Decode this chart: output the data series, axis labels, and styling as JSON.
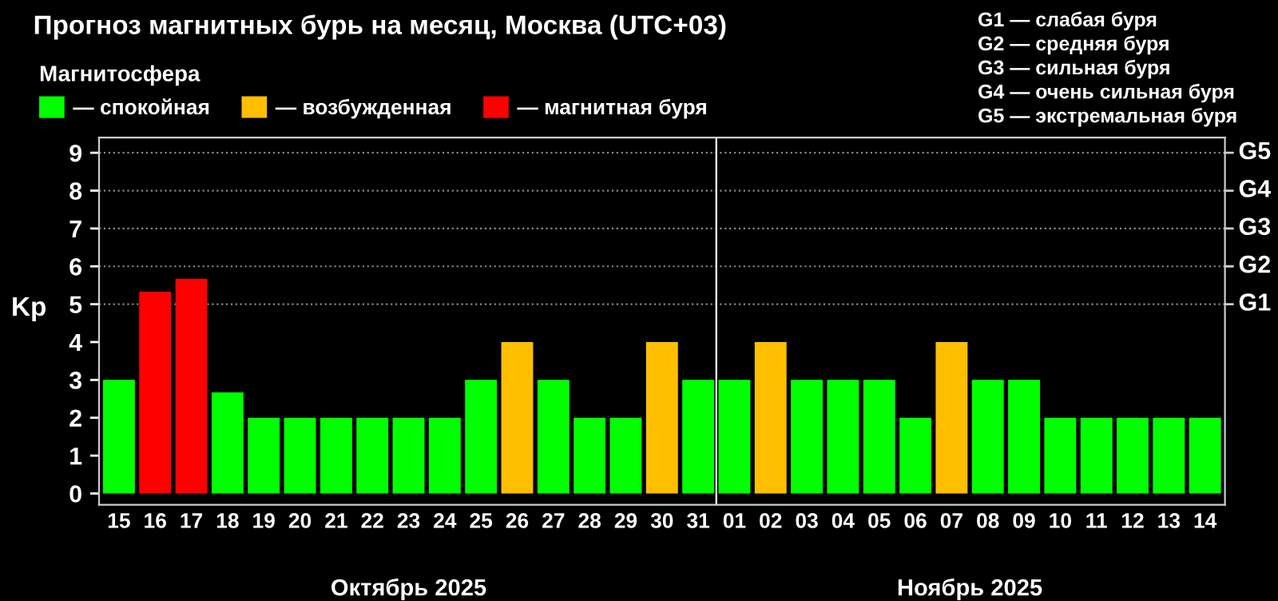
{
  "chart_data": {
    "type": "bar",
    "title": "Прогноз магнитных бурь на месяц, Москва (UTC+03)",
    "ylabel": "Kp",
    "legend_title": "Магнитосфера",
    "categories": [
      "15",
      "16",
      "17",
      "18",
      "19",
      "20",
      "21",
      "22",
      "23",
      "24",
      "25",
      "26",
      "27",
      "28",
      "29",
      "30",
      "31",
      "01",
      "02",
      "03",
      "04",
      "05",
      "06",
      "07",
      "08",
      "09",
      "10",
      "11",
      "12",
      "13",
      "14"
    ],
    "series": [
      {
        "name": "— спокойная",
        "color": "#00ff00",
        "values": [
          3,
          null,
          null,
          2.67,
          2,
          2,
          2,
          2,
          2,
          2,
          3,
          null,
          3,
          2,
          2,
          null,
          3,
          3,
          null,
          3,
          3,
          3,
          2,
          null,
          3,
          3,
          2,
          2,
          2,
          2,
          2
        ]
      },
      {
        "name": "— возбужденная",
        "color": "#ffbf00",
        "values": [
          null,
          null,
          null,
          null,
          null,
          null,
          null,
          null,
          null,
          null,
          null,
          4,
          null,
          null,
          null,
          4,
          null,
          null,
          4,
          null,
          null,
          null,
          null,
          4,
          null,
          null,
          null,
          null,
          null,
          null,
          null
        ]
      },
      {
        "name": "— магнитная буря",
        "color": "#ff0000",
        "values": [
          null,
          5.33,
          5.67,
          null,
          null,
          null,
          null,
          null,
          null,
          null,
          null,
          null,
          null,
          null,
          null,
          null,
          null,
          null,
          null,
          null,
          null,
          null,
          null,
          null,
          null,
          null,
          null,
          null,
          null,
          null,
          null
        ]
      }
    ],
    "ylim": [
      -0.3,
      9.4
    ],
    "yticks": [
      0,
      1,
      2,
      3,
      4,
      5,
      6,
      7,
      8,
      9
    ],
    "legend": "top left",
    "ref_lines": [
      {
        "axis": "x",
        "value": "01",
        "color": "#ffffff"
      },
      {
        "axis": "y",
        "value": 5,
        "label": "G1",
        "color": "#888888",
        "line_style": "dotted"
      },
      {
        "axis": "y",
        "value": 6,
        "label": "G2",
        "color": "#888888",
        "line_style": "dotted"
      },
      {
        "axis": "y",
        "value": 7,
        "label": "G3",
        "color": "#888888",
        "line_style": "dotted"
      },
      {
        "axis": "y",
        "value": 8,
        "label": "G4",
        "color": "#888888",
        "line_style": "dotted"
      },
      {
        "axis": "y",
        "value": 9,
        "label": "G5",
        "color": "#888888",
        "line_style": "dotted"
      }
    ],
    "annotations": [
      "Октябрь 2025",
      "Ноябрь 2025",
      "G1 — слабая буря",
      "G2 — средняя буря",
      "G3 — сильная буря",
      "G4 — очень сильная буря",
      "G5 — экстремальная буря"
    ]
  }
}
